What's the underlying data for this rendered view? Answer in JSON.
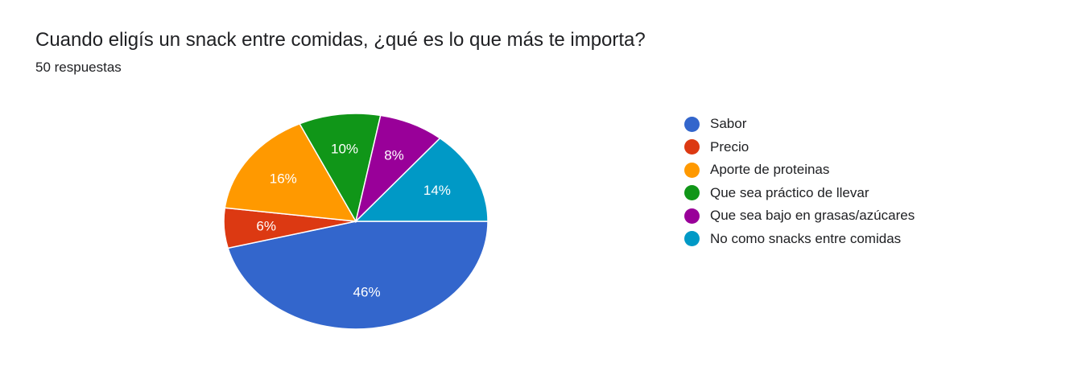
{
  "question": {
    "title": "Cuando eligís un snack entre comidas, ¿qué es lo que más te importa?",
    "responses": "50 respuestas"
  },
  "chart_data": {
    "type": "pie",
    "title": "Cuando eligís un snack entre comidas, ¿qué es lo que más te importa?",
    "categories": [
      "Sabor",
      "Precio",
      "Aporte de proteinas",
      "Que sea práctico de llevar",
      "Que sea bajo en grasas/azúcares",
      "No como snacks entre comidas"
    ],
    "values": [
      46,
      6,
      16,
      10,
      8,
      14
    ],
    "value_labels": [
      "46%",
      "6%",
      "16%",
      "10%",
      "8%",
      "14%"
    ],
    "colors": [
      "#3366cc",
      "#dc3912",
      "#ff9900",
      "#109618",
      "#990099",
      "#0099c6"
    ],
    "legend_position": "right"
  }
}
